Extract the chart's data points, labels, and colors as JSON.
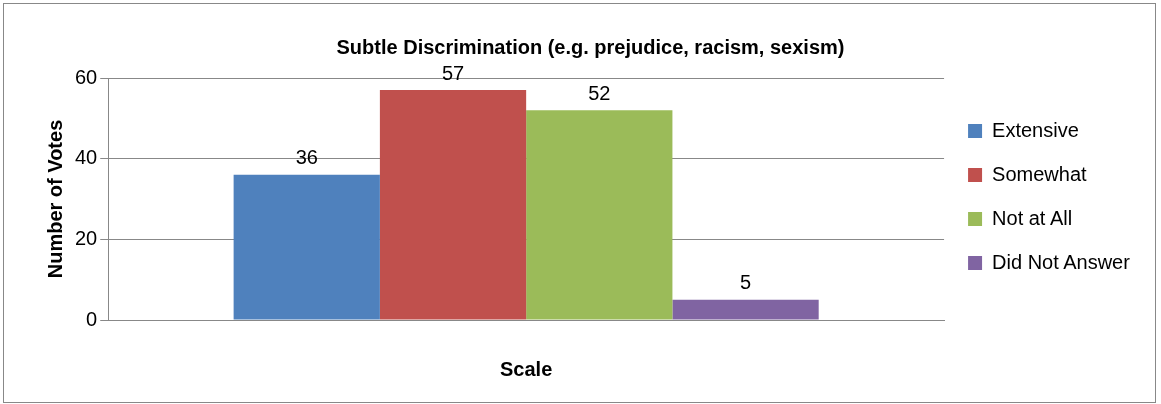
{
  "chart_data": {
    "type": "bar",
    "title": "Subtle Discrimination (e.g. prejudice, racism, sexism)",
    "xlabel": "Scale",
    "ylabel": "Number of Votes",
    "categories": [
      null
    ],
    "series": [
      {
        "name": "Extensive",
        "color": "#4f81bd",
        "values": [
          36
        ]
      },
      {
        "name": "Somewhat",
        "color": "#c0504d",
        "values": [
          57
        ]
      },
      {
        "name": "Not at All",
        "color": "#9bbb59",
        "values": [
          52
        ]
      },
      {
        "name": "Did Not Answer",
        "color": "#8064a2",
        "values": [
          5
        ]
      }
    ],
    "ylim": [
      0,
      60
    ],
    "yticks": [
      0,
      20,
      40,
      60
    ],
    "grid": "y",
    "legend": "right",
    "data_labels": true
  }
}
